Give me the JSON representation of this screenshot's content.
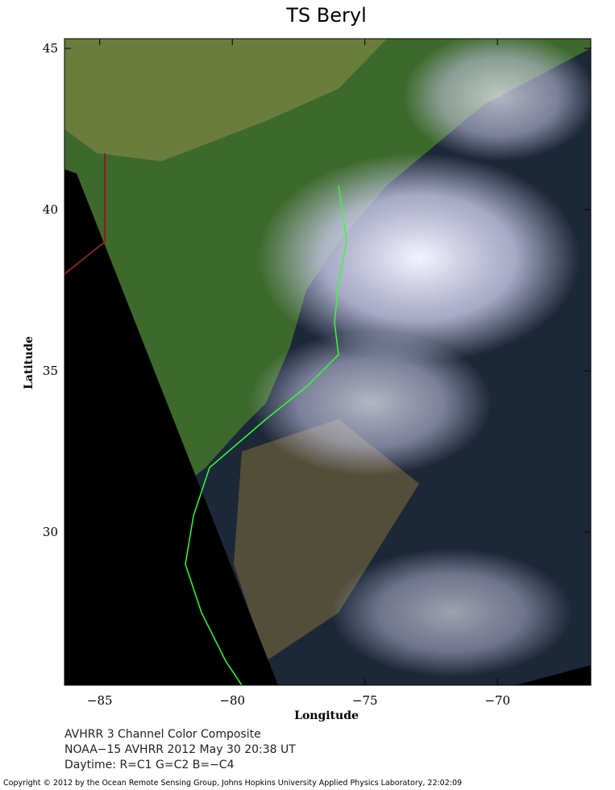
{
  "title": "TS Beryl",
  "map": {
    "x_label": "Longitude",
    "y_label": "Latitude",
    "xlim": [
      -86.33,
      -66.48
    ],
    "ylim": [
      25.25,
      45.3
    ],
    "xticks": [
      {
        "value": -85,
        "label": "−85"
      },
      {
        "value": -80,
        "label": "−80"
      },
      {
        "value": -75,
        "label": "−75"
      },
      {
        "value": -70,
        "label": "−70"
      }
    ],
    "yticks": [
      30,
      35,
      40,
      45
    ]
  },
  "caption": [
    "AVHRR 3 Channel Color Composite",
    "NOAA−15 AVHRR 2012 May 30 20:38 UT",
    "Daytime: R=C1 G=C2 B=−C4"
  ],
  "copyright": "Copyright © 2012 by the Ocean Remote Sensing Group, Johns Hopkins University Applied Physics Laboratory, 22:02:09"
}
